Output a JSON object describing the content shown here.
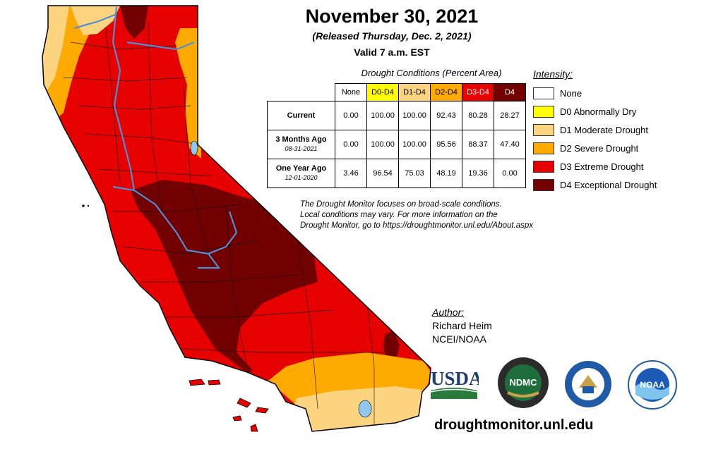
{
  "header": {
    "title": "November 30, 2021",
    "released": "(Released Thursday, Dec. 2, 2021)",
    "valid": "Valid 7 a.m. EST"
  },
  "conditions_table": {
    "caption": "Drought Conditions (Percent Area)",
    "columns": [
      {
        "label": "None",
        "color": "#ffffff"
      },
      {
        "label": "D0-D4",
        "color": "#ffff00"
      },
      {
        "label": "D1-D4",
        "color": "#fcd37f"
      },
      {
        "label": "D2-D4",
        "color": "#ffaa00"
      },
      {
        "label": "D3-D4",
        "color": "#e60000"
      },
      {
        "label": "D4",
        "color": "#730000"
      }
    ],
    "rows": [
      {
        "label": "Current",
        "sub": "",
        "values": [
          "0.00",
          "100.00",
          "100.00",
          "92.43",
          "80.28",
          "28.27"
        ]
      },
      {
        "label": "3 Months Ago",
        "sub": "08-31-2021",
        "values": [
          "0.00",
          "100.00",
          "100.00",
          "95.56",
          "88.37",
          "47.40"
        ]
      },
      {
        "label": "One Year Ago",
        "sub": "12-01-2020",
        "values": [
          "3.46",
          "96.54",
          "75.03",
          "48.19",
          "19.36",
          "0.00"
        ]
      }
    ]
  },
  "legend": {
    "title": "Intensity:",
    "items": [
      {
        "label": "None",
        "color": "#ffffff"
      },
      {
        "label": "D0 Abnormally Dry",
        "color": "#ffff00"
      },
      {
        "label": "D1 Moderate Drought",
        "color": "#fcd37f"
      },
      {
        "label": "D2 Severe Drought",
        "color": "#ffaa00"
      },
      {
        "label": "D3 Extreme Drought",
        "color": "#e60000"
      },
      {
        "label": "D4 Exceptional Drought",
        "color": "#730000"
      }
    ]
  },
  "note": {
    "line1": "The Drought Monitor focuses on broad-scale conditions.",
    "line2": "Local conditions may vary. For more information on the",
    "line3": "Drought Monitor, go to https://droughtmonitor.unl.edu/About.aspx"
  },
  "author": {
    "label": "Author:",
    "name": "Richard Heim",
    "org": "NCEI/NOAA"
  },
  "logos": {
    "usda": "USDA",
    "ndmc": "NDMC",
    "noaa": "NOAA"
  },
  "footer": {
    "url": "droughtmonitor.unl.edu"
  }
}
